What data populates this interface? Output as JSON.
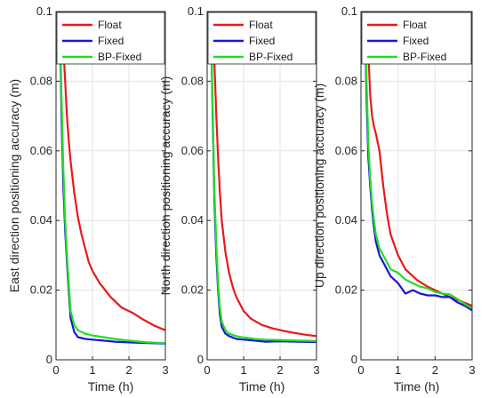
{
  "chart_data": [
    {
      "type": "line",
      "xlabel": "Time (h)",
      "ylabel": "East direction positioning accuracy (m)",
      "xlim": [
        0,
        3
      ],
      "ylim": [
        0,
        0.1
      ],
      "xticks": [
        "0",
        "1",
        "2",
        "3"
      ],
      "yticks": [
        "0",
        "0.02",
        "0.04",
        "0.06",
        "0.08",
        "0.1"
      ],
      "grid": true,
      "legend": "top-right",
      "series": [
        {
          "name": "Float",
          "color": "#e8191b",
          "x": [
            0.1,
            0.15,
            0.2,
            0.25,
            0.3,
            0.35,
            0.4,
            0.5,
            0.6,
            0.7,
            0.8,
            0.9,
            1.0,
            1.2,
            1.5,
            1.8,
            2.1,
            2.4,
            2.7,
            3.0
          ],
          "y": [
            0.1,
            0.1,
            0.09,
            0.08,
            0.07,
            0.063,
            0.057,
            0.048,
            0.041,
            0.036,
            0.032,
            0.028,
            0.0255,
            0.022,
            0.018,
            0.015,
            0.0135,
            0.0115,
            0.0098,
            0.0085
          ]
        },
        {
          "name": "Fixed",
          "color": "#1717d6",
          "x": [
            0.1,
            0.15,
            0.2,
            0.25,
            0.3,
            0.35,
            0.4,
            0.5,
            0.6,
            0.8,
            1.0,
            1.3,
            1.6,
            2.0,
            2.5,
            3.0
          ],
          "y": [
            0.1,
            0.07,
            0.05,
            0.037,
            0.028,
            0.02,
            0.012,
            0.008,
            0.0065,
            0.006,
            0.0058,
            0.0055,
            0.0052,
            0.005,
            0.0048,
            0.0047
          ]
        },
        {
          "name": "BP-Fixed",
          "color": "#22dd22",
          "x": [
            0.1,
            0.15,
            0.2,
            0.25,
            0.3,
            0.35,
            0.4,
            0.5,
            0.6,
            0.8,
            1.0,
            1.3,
            1.6,
            2.0,
            2.5,
            3.0
          ],
          "y": [
            0.1,
            0.075,
            0.055,
            0.04,
            0.03,
            0.022,
            0.014,
            0.01,
            0.0085,
            0.0075,
            0.007,
            0.0065,
            0.006,
            0.0055,
            0.005,
            0.0048
          ]
        }
      ]
    },
    {
      "type": "line",
      "xlabel": "Time (h)",
      "ylabel": "North direction positioning accuracy (m)",
      "xlim": [
        0,
        3
      ],
      "ylim": [
        0,
        0.1
      ],
      "xticks": [
        "0",
        "1",
        "2",
        "3"
      ],
      "yticks": [
        "0",
        "0.02",
        "0.04",
        "0.06",
        "0.08",
        "0.1"
      ],
      "grid": true,
      "legend": "top-right",
      "series": [
        {
          "name": "Float",
          "color": "#e8191b",
          "x": [
            0.1,
            0.15,
            0.2,
            0.25,
            0.3,
            0.35,
            0.4,
            0.5,
            0.6,
            0.7,
            0.8,
            1.0,
            1.2,
            1.5,
            1.8,
            2.1,
            2.4,
            2.7,
            3.0
          ],
          "y": [
            0.1,
            0.1,
            0.085,
            0.07,
            0.058,
            0.048,
            0.04,
            0.031,
            0.025,
            0.021,
            0.018,
            0.014,
            0.0118,
            0.01,
            0.009,
            0.0083,
            0.0077,
            0.0072,
            0.0068
          ]
        },
        {
          "name": "Fixed",
          "color": "#1717d6",
          "x": [
            0.1,
            0.15,
            0.2,
            0.25,
            0.3,
            0.35,
            0.4,
            0.5,
            0.6,
            0.8,
            1.0,
            1.3,
            1.6,
            2.0,
            2.5,
            3.0
          ],
          "y": [
            0.1,
            0.07,
            0.045,
            0.03,
            0.02,
            0.013,
            0.0095,
            0.0075,
            0.0068,
            0.006,
            0.0058,
            0.0055,
            0.0052,
            0.0053,
            0.0052,
            0.0051
          ]
        },
        {
          "name": "BP-Fixed",
          "color": "#22dd22",
          "x": [
            0.1,
            0.15,
            0.2,
            0.25,
            0.3,
            0.35,
            0.4,
            0.5,
            0.6,
            0.8,
            1.0,
            1.3,
            1.6,
            2.0,
            2.5,
            3.0
          ],
          "y": [
            0.1,
            0.072,
            0.048,
            0.033,
            0.022,
            0.015,
            0.011,
            0.0085,
            0.0075,
            0.0068,
            0.0064,
            0.006,
            0.0058,
            0.0057,
            0.0055,
            0.0054
          ]
        }
      ]
    },
    {
      "type": "line",
      "xlabel": "Time (h)",
      "ylabel": "Up direction positioning accuracy (m)",
      "xlim": [
        0,
        3
      ],
      "ylim": [
        0,
        0.1
      ],
      "xticks": [
        "0",
        "1",
        "2",
        "3"
      ],
      "yticks": [
        "0",
        "0.02",
        "0.04",
        "0.06",
        "0.08",
        "0.1"
      ],
      "grid": true,
      "legend": "top-right",
      "series": [
        {
          "name": "Float",
          "color": "#e8191b",
          "x": [
            0.1,
            0.15,
            0.2,
            0.25,
            0.3,
            0.35,
            0.4,
            0.5,
            0.6,
            0.7,
            0.8,
            1.0,
            1.2,
            1.5,
            1.8,
            2.1,
            2.4,
            2.7,
            3.0
          ],
          "y": [
            0.1,
            0.1,
            0.088,
            0.076,
            0.07,
            0.067,
            0.065,
            0.06,
            0.05,
            0.042,
            0.036,
            0.03,
            0.026,
            0.023,
            0.021,
            0.0195,
            0.018,
            0.0168,
            0.0155
          ]
        },
        {
          "name": "Fixed",
          "color": "#1717d6",
          "x": [
            0.1,
            0.15,
            0.2,
            0.25,
            0.3,
            0.35,
            0.4,
            0.5,
            0.6,
            0.7,
            0.8,
            1.0,
            1.2,
            1.4,
            1.6,
            1.8,
            2.0,
            2.2,
            2.4,
            2.6,
            2.8,
            3.0
          ],
          "y": [
            0.1,
            0.075,
            0.058,
            0.05,
            0.043,
            0.038,
            0.034,
            0.03,
            0.028,
            0.026,
            0.024,
            0.022,
            0.019,
            0.02,
            0.019,
            0.0185,
            0.0185,
            0.018,
            0.018,
            0.0165,
            0.0155,
            0.0142
          ]
        },
        {
          "name": "BP-Fixed",
          "color": "#22dd22",
          "x": [
            0.1,
            0.15,
            0.2,
            0.25,
            0.3,
            0.35,
            0.4,
            0.5,
            0.6,
            0.7,
            0.8,
            1.0,
            1.2,
            1.4,
            1.6,
            1.8,
            2.0,
            2.2,
            2.4,
            2.6,
            2.8,
            3.0
          ],
          "y": [
            0.1,
            0.08,
            0.062,
            0.052,
            0.045,
            0.04,
            0.036,
            0.032,
            0.03,
            0.028,
            0.026,
            0.025,
            0.023,
            0.022,
            0.021,
            0.0205,
            0.0195,
            0.019,
            0.0188,
            0.0175,
            0.016,
            0.0148
          ]
        }
      ]
    }
  ]
}
